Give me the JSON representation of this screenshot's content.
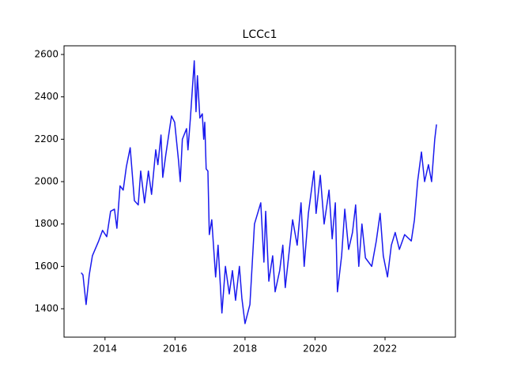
{
  "chart_data": {
    "type": "line",
    "title": "LCCc1",
    "color": "#1a1aee",
    "x": [
      2013.32,
      2013.37,
      2013.46,
      2013.55,
      2013.64,
      2013.82,
      2013.93,
      2014.05,
      2014.16,
      2014.27,
      2014.34,
      2014.43,
      2014.52,
      2014.61,
      2014.72,
      2014.84,
      2014.95,
      2015.02,
      2015.13,
      2015.24,
      2015.33,
      2015.45,
      2015.51,
      2015.6,
      2015.65,
      2015.74,
      2015.9,
      2015.99,
      2016.1,
      2016.15,
      2016.21,
      2016.33,
      2016.37,
      2016.44,
      2016.55,
      2016.6,
      2016.64,
      2016.71,
      2016.78,
      2016.82,
      2016.85,
      2016.89,
      2016.94,
      2016.98,
      2017.05,
      2017.16,
      2017.23,
      2017.34,
      2017.44,
      2017.55,
      2017.64,
      2017.73,
      2017.84,
      2017.91,
      2018.0,
      2018.14,
      2018.27,
      2018.45,
      2018.54,
      2018.59,
      2018.68,
      2018.79,
      2018.86,
      2018.99,
      2019.08,
      2019.15,
      2019.36,
      2019.49,
      2019.6,
      2019.69,
      2019.81,
      2019.97,
      2020.03,
      2020.15,
      2020.26,
      2020.4,
      2020.49,
      2020.58,
      2020.64,
      2020.76,
      2020.85,
      2020.96,
      2021.07,
      2021.16,
      2021.25,
      2021.34,
      2021.44,
      2021.62,
      2021.75,
      2021.86,
      2021.95,
      2022.07,
      2022.18,
      2022.29,
      2022.41,
      2022.56,
      2022.75,
      2022.84,
      2022.93,
      2023.04,
      2023.13,
      2023.24,
      2023.33,
      2023.42,
      2023.47
    ],
    "values": [
      1570,
      1560,
      1420,
      1560,
      1650,
      1720,
      1770,
      1740,
      1860,
      1870,
      1780,
      1980,
      1960,
      2070,
      2160,
      1910,
      1890,
      2050,
      1900,
      2050,
      1940,
      2150,
      2080,
      2220,
      2020,
      2130,
      2310,
      2280,
      2100,
      2000,
      2200,
      2250,
      2150,
      2300,
      2570,
      2330,
      2500,
      2300,
      2320,
      2200,
      2280,
      2060,
      2050,
      1750,
      1820,
      1550,
      1700,
      1380,
      1600,
      1470,
      1580,
      1440,
      1600,
      1450,
      1330,
      1420,
      1800,
      1900,
      1620,
      1860,
      1530,
      1650,
      1480,
      1580,
      1700,
      1500,
      1820,
      1700,
      1900,
      1600,
      1850,
      2050,
      1850,
      2030,
      1800,
      1960,
      1730,
      1900,
      1480,
      1650,
      1870,
      1680,
      1760,
      1890,
      1600,
      1800,
      1640,
      1600,
      1720,
      1850,
      1650,
      1550,
      1700,
      1760,
      1680,
      1750,
      1720,
      1820,
      2000,
      2140,
      2000,
      2080,
      2000,
      2200,
      2270
    ],
    "xlim": [
      2012.83,
      2024.01
    ],
    "xticks": [
      2014,
      2016,
      2018,
      2020,
      2022
    ],
    "ylim": [
      1266,
      2641
    ],
    "yticks": [
      1400,
      1600,
      1800,
      2000,
      2200,
      2400,
      2600
    ]
  }
}
